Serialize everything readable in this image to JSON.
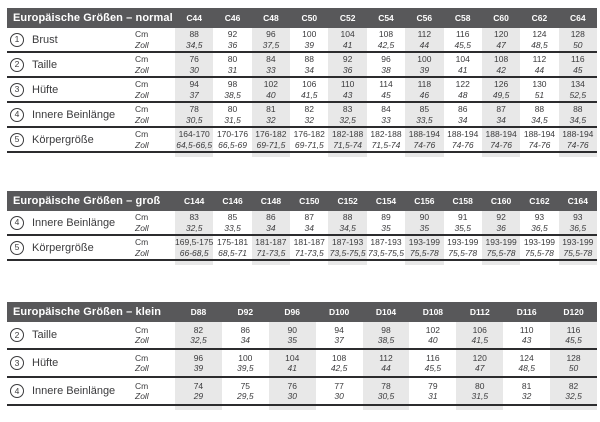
{
  "colors": {
    "header_bg": "#58585a",
    "header_text": "#ffffff",
    "column_shade": "#e8e8e8",
    "text": "#3b3b3d",
    "rule": "#2c2c2e"
  },
  "unit_labels": {
    "cm": "Cm",
    "zoll": "Zoll"
  },
  "tables": [
    {
      "title": "Europäische Größen – normal",
      "columns": [
        "C44",
        "C46",
        "C48",
        "C50",
        "C52",
        "C54",
        "C56",
        "C58",
        "C60",
        "C62",
        "C64"
      ],
      "rows": [
        {
          "index": "1",
          "label": "Brust",
          "cm": [
            "88",
            "92",
            "96",
            "100",
            "104",
            "108",
            "112",
            "116",
            "120",
            "124",
            "128"
          ],
          "zoll": [
            "34,5",
            "36",
            "37,5",
            "39",
            "41",
            "42,5",
            "44",
            "45,5",
            "47",
            "48,5",
            "50"
          ]
        },
        {
          "index": "2",
          "label": "Taille",
          "cm": [
            "76",
            "80",
            "84",
            "88",
            "92",
            "96",
            "100",
            "104",
            "108",
            "112",
            "116"
          ],
          "zoll": [
            "30",
            "31",
            "33",
            "34",
            "36",
            "38",
            "39",
            "41",
            "42",
            "44",
            "45"
          ]
        },
        {
          "index": "3",
          "label": "Hüfte",
          "cm": [
            "94",
            "98",
            "102",
            "106",
            "110",
            "114",
            "118",
            "122",
            "126",
            "130",
            "134"
          ],
          "zoll": [
            "37",
            "38,5",
            "40",
            "41,5",
            "43",
            "45",
            "46",
            "48",
            "49,5",
            "51",
            "52,5"
          ]
        },
        {
          "index": "4",
          "label": "Innere Beinlänge",
          "cm": [
            "78",
            "80",
            "81",
            "82",
            "83",
            "84",
            "85",
            "86",
            "87",
            "88",
            "88"
          ],
          "zoll": [
            "30,5",
            "31,5",
            "32",
            "32",
            "32,5",
            "33",
            "33,5",
            "34",
            "34",
            "34,5",
            "34,5"
          ]
        },
        {
          "index": "5",
          "label": "Körpergröße",
          "cm": [
            "164-170",
            "170-176",
            "176-182",
            "176-182",
            "182-188",
            "182-188",
            "188-194",
            "188-194",
            "188-194",
            "188-194",
            "188-194"
          ],
          "zoll": [
            "64,5-66,5",
            "66,5-69",
            "69-71,5",
            "69-71,5",
            "71,5-74",
            "71,5-74",
            "74-76",
            "74-76",
            "74-76",
            "74-76",
            "74-76"
          ]
        }
      ]
    },
    {
      "title": "Europäische Größen – groß",
      "columns": [
        "C144",
        "C146",
        "C148",
        "C150",
        "C152",
        "C154",
        "C156",
        "C158",
        "C160",
        "C162",
        "C164"
      ],
      "rows": [
        {
          "index": "4",
          "label": "Innere Beinlänge",
          "cm": [
            "83",
            "85",
            "86",
            "87",
            "88",
            "89",
            "90",
            "91",
            "92",
            "93",
            "93"
          ],
          "zoll": [
            "32,5",
            "33,5",
            "34",
            "34",
            "34,5",
            "35",
            "35",
            "35,5",
            "36",
            "36,5",
            "36,5"
          ]
        },
        {
          "index": "5",
          "label": "Körpergröße",
          "cm": [
            "169,5-175",
            "175-181",
            "181-187",
            "181-187",
            "187-193",
            "187-193",
            "193-199",
            "193-199",
            "193-199",
            "193-199",
            "193-199"
          ],
          "zoll": [
            "66-68,5",
            "68,5-71",
            "71-73,5",
            "71-73,5",
            "73,5-75,5",
            "73,5-75,5",
            "75,5-78",
            "75,5-78",
            "75,5-78",
            "75,5-78",
            "75,5-78"
          ]
        }
      ]
    },
    {
      "title": "Europäische Größen – klein",
      "columns": [
        "D88",
        "D92",
        "D96",
        "D100",
        "D104",
        "D108",
        "D112",
        "D116",
        "D120"
      ],
      "rows": [
        {
          "index": "2",
          "label": "Taille",
          "cm": [
            "82",
            "86",
            "90",
            "94",
            "98",
            "102",
            "106",
            "110",
            "116"
          ],
          "zoll": [
            "32,5",
            "34",
            "35",
            "37",
            "38,5",
            "40",
            "41,5",
            "43",
            "45,5"
          ]
        },
        {
          "index": "3",
          "label": "Hüfte",
          "cm": [
            "96",
            "100",
            "104",
            "108",
            "112",
            "116",
            "120",
            "124",
            "128"
          ],
          "zoll": [
            "39",
            "39,5",
            "41",
            "42,5",
            "44",
            "45,5",
            "47",
            "48,5",
            "50"
          ]
        },
        {
          "index": "4",
          "label": "Innere Beinlänge",
          "cm": [
            "74",
            "75",
            "76",
            "77",
            "78",
            "79",
            "80",
            "81",
            "82"
          ],
          "zoll": [
            "29",
            "29,5",
            "30",
            "30",
            "30,5",
            "31",
            "31,5",
            "32",
            "32,5"
          ]
        }
      ]
    }
  ]
}
